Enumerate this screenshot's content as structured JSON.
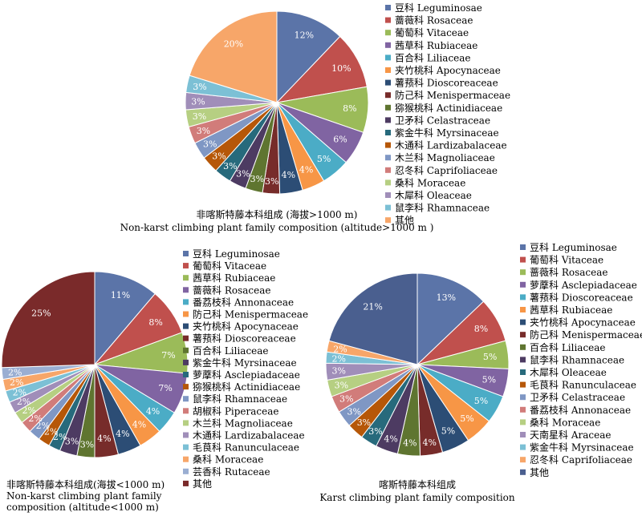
{
  "chart_data": [
    {
      "type": "pie",
      "title": "非喀斯特藤本科组成 (海拔>1000 m)",
      "subtitle": "Non-karst climbing plant family composition (altitude>1000 m )",
      "categories": [
        "豆科 Leguminosae",
        "蔷薇科 Rosaceae",
        "葡萄科 Vitaceae",
        "茜草科 Rubiaceae",
        "百合科 Liliaceae",
        "夹竹桃科 Apocynaceae",
        "薯蓣科 Dioscoreaceae",
        "防己科 Menispermaceae",
        "猕猴桃科 Actinidiaceae",
        "卫矛科 Celastraceae",
        "紫金牛科 Myrsinaceae",
        "木通科 Lardizabalaceae",
        "木兰科 Magnoliaceae",
        "忍冬科 Caprifoliaceae",
        "桑科 Moraceae",
        "木犀科 Oleaceae",
        "鼠李科 Rhamnaceae",
        "其他"
      ],
      "values": [
        12,
        10,
        8,
        6,
        5,
        4,
        4,
        3,
        3,
        3,
        3,
        3,
        3,
        3,
        3,
        3,
        3,
        20
      ],
      "labels": [
        "12%",
        "10%",
        "8%",
        "6%",
        "5%",
        "4%",
        "4%",
        "3%",
        "3%",
        "3%",
        "3%",
        "3%",
        "3%",
        "3%",
        "3%",
        "3%",
        "3%",
        "20%"
      ],
      "colors": [
        "#5b74a8",
        "#c0504d",
        "#9bbb59",
        "#8064a2",
        "#4bacc6",
        "#f79646",
        "#2c4d75",
        "#772c2a",
        "#5f7530",
        "#4d3b62",
        "#276a7c",
        "#b65708",
        "#7f97c4",
        "#d17c7a",
        "#b6cf82",
        "#a08eb9",
        "#7cc0d5",
        "#f7a669"
      ]
    },
    {
      "type": "pie",
      "title": "非喀斯特藤本科组成(海拔<1000 m)",
      "subtitle": "Non-karst climbing plant family composition (altitude<1000 m)",
      "categories": [
        "豆科 Leguminosae",
        "葡萄科 Vitaceae",
        "茜草科 Rubiaceae",
        "蔷薇科 Rosaceae",
        "番荔枝科 Annonaceae",
        "防己科 Menispermaceae",
        "夹竹桃科 Apocynaceae",
        "薯蓣科 Dioscoreaceae",
        "百合科 Liliaceae",
        "紫金牛科 Myrsinaceae",
        "萝藦科 Asclepiadaceae",
        "猕猴桃科 Actinidiaceae",
        "鼠李科 Rhamnaceae",
        "胡椒科 Piperaceae",
        "木兰科 Magnoliaceae",
        "木通科 Lardizabalaceae",
        "毛茛科 Ranunculaceae",
        "桑科 Moraceae",
        "芸香科 Rutaceae",
        "其他"
      ],
      "values": [
        11,
        8,
        7,
        7,
        4,
        4,
        4,
        4,
        3,
        3,
        2,
        2,
        2,
        2,
        2,
        2,
        2,
        2,
        2,
        25
      ],
      "labels": [
        "11%",
        "8%",
        "7%",
        "7%",
        "4%",
        "4%",
        "4%",
        "4%",
        "3%",
        "3%",
        "2%",
        "2%",
        "2%",
        "2%",
        "2%",
        "2%",
        "2%",
        "2%",
        "2%",
        "25%"
      ],
      "colors": [
        "#5b74a8",
        "#c0504d",
        "#9bbb59",
        "#8064a2",
        "#4bacc6",
        "#f79646",
        "#2c4d75",
        "#772c2a",
        "#5f7530",
        "#4d3b62",
        "#276a7c",
        "#b65708",
        "#7f97c4",
        "#d17c7a",
        "#b6cf82",
        "#a08eb9",
        "#7cc0d5",
        "#f7a669",
        "#9aaed2",
        "#7a2a2a"
      ]
    },
    {
      "type": "pie",
      "title": "喀斯特藤本科组成",
      "subtitle": "Karst climbing plant family composition",
      "categories": [
        "豆科 Leguminosae",
        "葡萄科 Vitaceae",
        "蔷薇科 Rosaceae",
        "萝藦科 Asclepiadaceae",
        "薯蓣科 Dioscoreaceae",
        "茜草科 Rubiaceae",
        "夹竹桃科 Apocynaceae",
        "防己科 Menispermaceae",
        "百合科 Liliaceae",
        "鼠李科 Rhamnaceae",
        "木犀科 Oleaceae",
        "毛茛科 Ranunculaceae",
        "卫矛科 Celastraceae",
        "番荔枝科 Annonaceae",
        "桑科 Moraceae",
        "天南星科 Araceae",
        "紫金牛科 Myrsinaceae",
        "忍冬科 Caprifoliaceae",
        "其他"
      ],
      "values": [
        13,
        8,
        5,
        5,
        5,
        5,
        5,
        4,
        4,
        4,
        3,
        3,
        3,
        3,
        3,
        3,
        2,
        2,
        21
      ],
      "labels": [
        "13%",
        "8%",
        "5%",
        "5%",
        "5%",
        "5%",
        "5%",
        "4%",
        "4%",
        "4%",
        "3%",
        "3%",
        "3%",
        "3%",
        "3%",
        "3%",
        "2%",
        "2%",
        "21%"
      ],
      "colors": [
        "#5b74a8",
        "#c0504d",
        "#9bbb59",
        "#8064a2",
        "#4bacc6",
        "#f79646",
        "#2c4d75",
        "#772c2a",
        "#5f7530",
        "#4d3b62",
        "#276a7c",
        "#b65708",
        "#7f97c4",
        "#d17c7a",
        "#b6cf82",
        "#a08eb9",
        "#7cc0d5",
        "#f7a669",
        "#4a5f8f"
      ]
    }
  ]
}
